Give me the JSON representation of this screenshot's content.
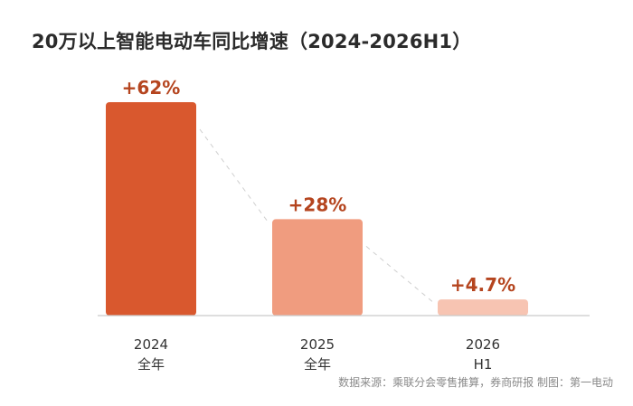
{
  "title": "20万以上智能电动车同比增速（2024-2026H1）",
  "source": "数据来源：乘联分会零售推算，券商研报 制图：第一电动",
  "chart_data": {
    "type": "bar",
    "categories": [
      [
        "2024",
        "全年"
      ],
      [
        "2025",
        "全年"
      ],
      [
        "2026",
        "H1"
      ]
    ],
    "series": [
      {
        "values": [
          62,
          28,
          4.7
        ]
      }
    ],
    "data_labels": [
      "+62%",
      "+28%",
      "+4.7%"
    ],
    "ylim": [
      0,
      62
    ],
    "colors": [
      "#d9582e",
      "#f09c7f",
      "#f7c4b2"
    ],
    "label_color": "#b5451f",
    "trend_line": "dashed",
    "grid": false
  }
}
